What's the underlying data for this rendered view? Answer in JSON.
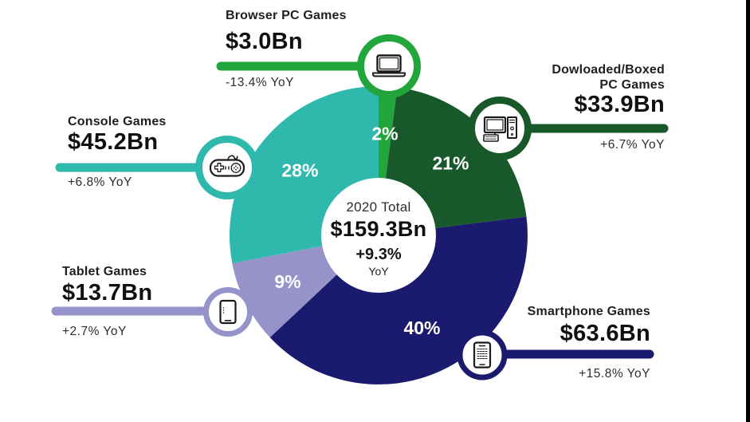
{
  "colors": {
    "background": "#ffffff",
    "text": "#1f1f1f",
    "pct_label": "#ffffff",
    "edge_bar": "#000000"
  },
  "chart_data": {
    "type": "pie",
    "donut": true,
    "direction": "clockwise",
    "start_angle_deg": 0,
    "center": {
      "label": "2020 Total",
      "value": "$159.3Bn",
      "value_bn": 159.3,
      "delta": "+9.3%",
      "delta_pct": 9.3,
      "delta_suffix": "YoY"
    },
    "series": [
      {
        "name": "Browser PC Games",
        "pct": 2,
        "pct_label": "2%",
        "value": "$3.0Bn",
        "value_bn": 3.0,
        "yoy": "-13.4% YoY",
        "yoy_pct": -13.4,
        "color": "#22A63B",
        "icon": "laptop-icon"
      },
      {
        "name": "Dowloaded/Boxed PC Games",
        "name_line1": "Dowloaded/Boxed",
        "name_line2": "PC Games",
        "pct": 21,
        "pct_label": "21%",
        "value": "$33.9Bn",
        "value_bn": 33.9,
        "yoy": "+6.7% YoY",
        "yoy_pct": 6.7,
        "color": "#19582B",
        "icon": "desktop-pc-icon"
      },
      {
        "name": "Smartphone Games",
        "pct": 40,
        "pct_label": "40%",
        "value": "$63.6Bn",
        "value_bn": 63.6,
        "yoy": "+15.8% YoY",
        "yoy_pct": 15.8,
        "color": "#1A1A6E",
        "icon": "smartphone-icon"
      },
      {
        "name": "Tablet Games",
        "pct": 9,
        "pct_label": "9%",
        "value": "$13.7Bn",
        "value_bn": 13.7,
        "yoy": "+2.7% YoY",
        "yoy_pct": 2.7,
        "color": "#9593CA",
        "icon": "tablet-icon"
      },
      {
        "name": "Console Games",
        "pct": 28,
        "pct_label": "28%",
        "value": "$45.2Bn",
        "value_bn": 45.2,
        "yoy": "+6.8% YoY",
        "yoy_pct": 6.8,
        "color": "#2FB9AD",
        "icon": "gamepad-icon"
      }
    ]
  }
}
